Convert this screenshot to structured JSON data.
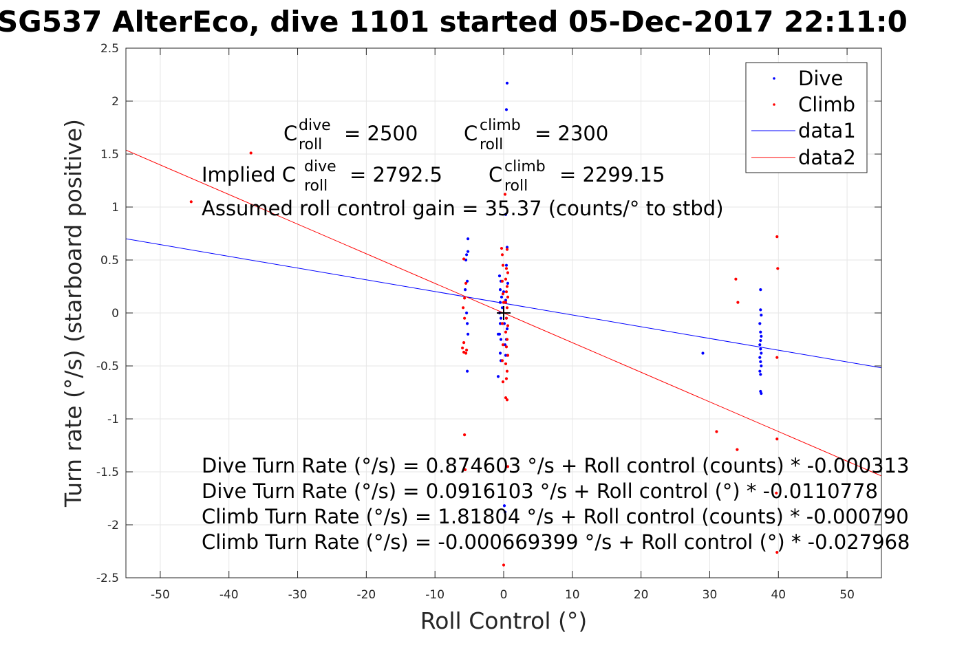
{
  "chart_data": {
    "type": "scatter",
    "title": "SG537 AlterEco, dive 1101 started 05-Dec-2017 22:11:0",
    "xlabel": "Roll Control (°)",
    "ylabel": "Turn rate (°/s) (starboard positive)",
    "xlim": [
      -55,
      55
    ],
    "ylim": [
      -2.5,
      2.5
    ],
    "xticks": [
      "-50",
      "-40",
      "-30",
      "-20",
      "-10",
      "0",
      "10",
      "20",
      "30",
      "40",
      "50"
    ],
    "yticks": [
      "2.5",
      "2",
      "1.5",
      "1",
      "0.5",
      "0",
      "-0.5",
      "-1",
      "-1.5",
      "-2",
      "-2.5"
    ],
    "grid": true,
    "legend_position": "top-right",
    "legend": [
      {
        "label": "Dive",
        "kind": "marker",
        "color": "#0000ff"
      },
      {
        "label": "Climb",
        "kind": "marker",
        "color": "#ff0000"
      },
      {
        "label": "data1",
        "kind": "line",
        "color": "#0000ff"
      },
      {
        "label": "data2",
        "kind": "line",
        "color": "#ff0000"
      }
    ],
    "series": [
      {
        "name": "Dive",
        "color": "#0000ff",
        "points": [
          [
            -5.2,
            0.7
          ],
          [
            -5.2,
            0.58
          ],
          [
            -5.4,
            0.55
          ],
          [
            -5.5,
            0.5
          ],
          [
            -5.3,
            0.3
          ],
          [
            -5.6,
            0.22
          ],
          [
            -5.4,
            0.0
          ],
          [
            -5.3,
            -0.1
          ],
          [
            -5.2,
            -0.2
          ],
          [
            -5.3,
            -0.55
          ],
          [
            -0.6,
            0.35
          ],
          [
            -0.4,
            0.3
          ],
          [
            -0.5,
            0.22
          ],
          [
            -0.3,
            0.15
          ],
          [
            -0.5,
            0.1
          ],
          [
            -0.2,
            0.05
          ],
          [
            -0.6,
            0.0
          ],
          [
            -0.4,
            -0.05
          ],
          [
            -0.5,
            -0.1
          ],
          [
            -0.6,
            -0.2
          ],
          [
            -0.8,
            -0.2
          ],
          [
            -0.4,
            -0.25
          ],
          [
            -0.5,
            -0.38
          ],
          [
            -0.4,
            -0.45
          ],
          [
            -0.8,
            -0.6
          ],
          [
            0.0,
            0.2
          ],
          [
            0.1,
            -0.1
          ],
          [
            0.2,
            -0.3
          ],
          [
            0.5,
            2.17
          ],
          [
            0.4,
            1.92
          ],
          [
            0.3,
            0.93
          ],
          [
            0.5,
            0.62
          ],
          [
            0.4,
            0.45
          ],
          [
            0.6,
            0.28
          ],
          [
            0.3,
            0.12
          ],
          [
            0.4,
            -0.05
          ],
          [
            0.5,
            -0.15
          ],
          [
            0.4,
            -0.25
          ],
          [
            0.3,
            -0.4
          ],
          [
            0.1,
            -1.82
          ],
          [
            0.2,
            -1.88
          ],
          [
            29.0,
            -0.38
          ],
          [
            37.4,
            0.22
          ],
          [
            37.4,
            0.03
          ],
          [
            37.5,
            -0.02
          ],
          [
            37.3,
            -0.1
          ],
          [
            37.4,
            -0.18
          ],
          [
            37.5,
            -0.22
          ],
          [
            37.4,
            -0.26
          ],
          [
            37.3,
            -0.3
          ],
          [
            37.4,
            -0.34
          ],
          [
            37.5,
            -0.38
          ],
          [
            37.3,
            -0.42
          ],
          [
            37.4,
            -0.46
          ],
          [
            37.5,
            -0.5
          ],
          [
            37.3,
            -0.55
          ],
          [
            37.4,
            -0.58
          ],
          [
            37.4,
            -0.74
          ],
          [
            37.5,
            -0.76
          ]
        ]
      },
      {
        "name": "Climb",
        "color": "#ff0000",
        "points": [
          [
            -45.5,
            1.05
          ],
          [
            -36.8,
            1.51
          ],
          [
            -5.8,
            0.51
          ],
          [
            -5.5,
            0.28
          ],
          [
            -5.7,
            0.14
          ],
          [
            -5.9,
            0.05
          ],
          [
            -5.7,
            -0.05
          ],
          [
            -5.8,
            -0.28
          ],
          [
            -6.0,
            -0.33
          ],
          [
            -5.4,
            -0.35
          ],
          [
            -5.8,
            -0.37
          ],
          [
            -5.5,
            -0.38
          ],
          [
            -5.7,
            -1.15
          ],
          [
            -5.6,
            -1.48
          ],
          [
            -0.3,
            0.61
          ],
          [
            -0.2,
            0.55
          ],
          [
            -0.1,
            0.45
          ],
          [
            -0.2,
            0.3
          ],
          [
            -0.1,
            0.18
          ],
          [
            0.0,
            0.1
          ],
          [
            -0.2,
            -0.1
          ],
          [
            -0.1,
            -0.3
          ],
          [
            -0.2,
            -0.45
          ],
          [
            -0.1,
            -0.65
          ],
          [
            0.0,
            -2.38
          ],
          [
            0.2,
            1.12
          ],
          [
            0.5,
            0.6
          ],
          [
            0.4,
            0.42
          ],
          [
            0.6,
            0.38
          ],
          [
            0.3,
            0.32
          ],
          [
            0.5,
            0.25
          ],
          [
            0.4,
            0.2
          ],
          [
            0.6,
            0.15
          ],
          [
            0.3,
            0.1
          ],
          [
            0.5,
            0.05
          ],
          [
            0.4,
            -0.05
          ],
          [
            0.6,
            -0.12
          ],
          [
            0.3,
            -0.18
          ],
          [
            0.5,
            -0.25
          ],
          [
            0.4,
            -0.32
          ],
          [
            0.6,
            -0.4
          ],
          [
            0.3,
            -0.48
          ],
          [
            0.5,
            -0.55
          ],
          [
            0.4,
            -0.62
          ],
          [
            0.3,
            -0.8
          ],
          [
            0.5,
            -0.82
          ],
          [
            0.6,
            -1.45
          ],
          [
            31.0,
            -1.12
          ],
          [
            33.8,
            0.32
          ],
          [
            34.1,
            0.1
          ],
          [
            34.0,
            -1.29
          ],
          [
            39.8,
            0.72
          ],
          [
            39.9,
            0.42
          ],
          [
            39.8,
            -0.42
          ],
          [
            39.8,
            -1.19
          ],
          [
            39.7,
            -1.7
          ],
          [
            39.8,
            -2.26
          ]
        ]
      },
      {
        "name": "data1",
        "kind": "fit-line",
        "color": "#0000ff",
        "x": [
          -55,
          55
        ],
        "y": [
          0.7009,
          -0.5177
        ]
      },
      {
        "name": "data2",
        "kind": "fit-line",
        "color": "#ff0000",
        "x": [
          -55,
          55
        ],
        "y": [
          1.5376,
          -1.5388
        ]
      }
    ],
    "center_marker": {
      "x": 0,
      "y": 0,
      "symbol": "+",
      "color": "#000000"
    },
    "annotations": {
      "c_dive": {
        "base": "C",
        "sup": "dive",
        "sub": "roll",
        "value": "= 2500"
      },
      "c_climb": {
        "base": "C",
        "sup": "climb",
        "sub": "roll",
        "value": "= 2300"
      },
      "implied_dive": {
        "prefix": "Implied C",
        "sup": "dive",
        "sub": "roll",
        "value": "= 2792.5"
      },
      "implied_climb": {
        "base": "C",
        "sup": "climb",
        "sub": "roll",
        "value": "= 2299.15"
      },
      "gain": "Assumed roll control gain = 35.37 (counts/° to stbd)",
      "fit1": "Dive Turn Rate (°/s) = 0.874603 °/s + Roll control (counts) * -0.000313",
      "fit2": "Dive Turn Rate (°/s) = 0.0916103 °/s + Roll control (°) * -0.0110778",
      "fit3": "Climb Turn Rate (°/s) = 1.81804 °/s + Roll control (counts) * -0.000790",
      "fit4": "Climb Turn Rate (°/s) = -0.000669399 °/s + Roll control (°) * -0.027968"
    }
  }
}
